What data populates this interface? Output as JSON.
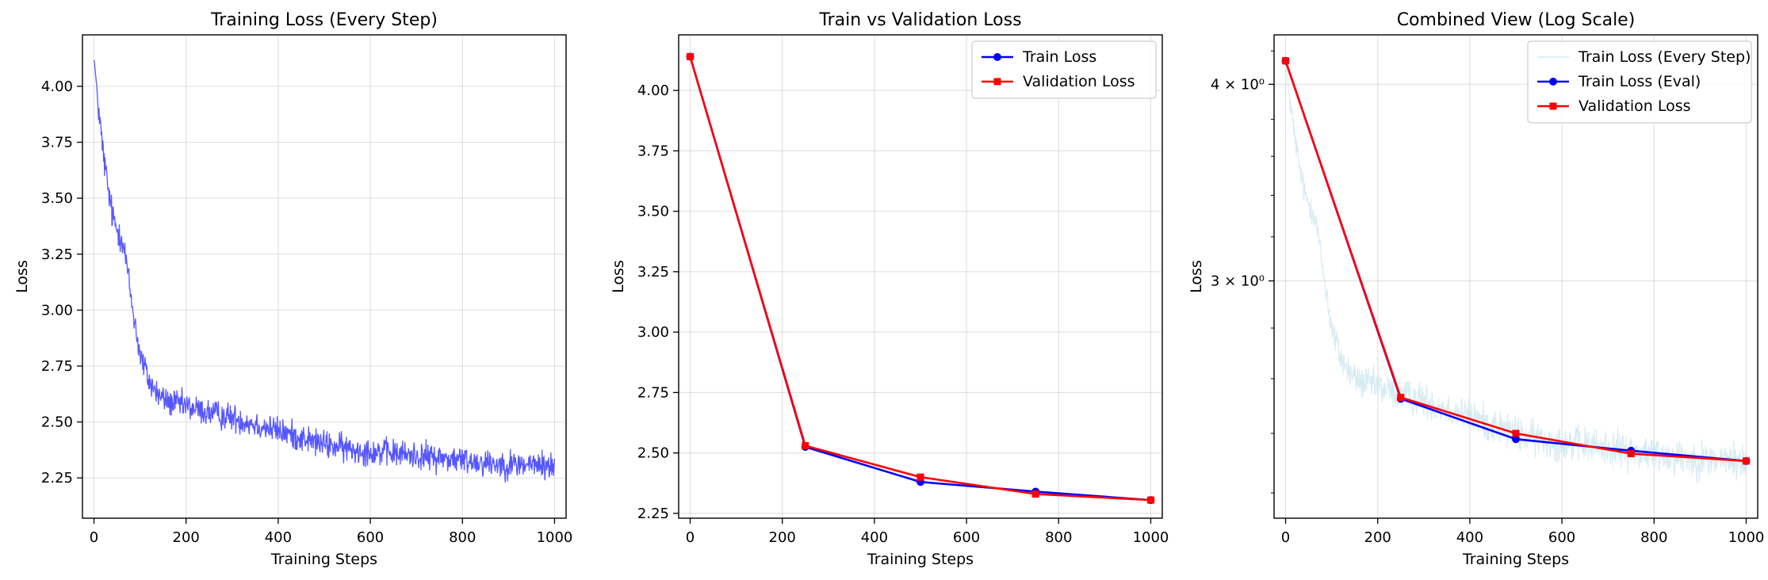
{
  "chart_data": [
    {
      "type": "line",
      "title": "Training Loss (Every Step)",
      "xlabel": "Training Steps",
      "ylabel": "Loss",
      "xlim": [
        -25,
        1025
      ],
      "ylim": [
        2.07,
        4.23
      ],
      "xticks": [
        0,
        200,
        400,
        600,
        800,
        1000
      ],
      "xtick_labels": [
        "0",
        "200",
        "400",
        "600",
        "800",
        "1000"
      ],
      "yticks": [
        2.25,
        2.5,
        2.75,
        3.0,
        3.25,
        3.5,
        3.75,
        4.0
      ],
      "ytick_labels": [
        "2.25",
        "2.50",
        "2.75",
        "3.00",
        "3.25",
        "3.50",
        "3.75",
        "4.00"
      ],
      "grid": true,
      "series": [
        {
          "color": "#4444ff",
          "per_step": true,
          "x": [
            0,
            10,
            20,
            30,
            40,
            50,
            60,
            70,
            80,
            90,
            100,
            120,
            140,
            160,
            180,
            200,
            250,
            300,
            350,
            400,
            450,
            500,
            550,
            600,
            650,
            700,
            750,
            800,
            850,
            900,
            950,
            1000
          ],
          "values": [
            4.13,
            3.9,
            3.7,
            3.55,
            3.42,
            3.36,
            3.33,
            3.22,
            3.06,
            2.93,
            2.8,
            2.68,
            2.62,
            2.59,
            2.58,
            2.57,
            2.54,
            2.52,
            2.49,
            2.46,
            2.43,
            2.4,
            2.38,
            2.37,
            2.36,
            2.35,
            2.34,
            2.33,
            2.32,
            2.31,
            2.31,
            2.3
          ]
        }
      ]
    },
    {
      "type": "line",
      "title": "Train vs Validation Loss",
      "xlabel": "Training Steps",
      "ylabel": "Loss",
      "xlim": [
        -25,
        1025
      ],
      "ylim": [
        2.23,
        4.23
      ],
      "xticks": [
        0,
        200,
        400,
        600,
        800,
        1000
      ],
      "xtick_labels": [
        "0",
        "200",
        "400",
        "600",
        "800",
        "1000"
      ],
      "yticks": [
        2.25,
        2.5,
        2.75,
        3.0,
        3.25,
        3.5,
        3.75,
        4.0
      ],
      "ytick_labels": [
        "2.25",
        "2.50",
        "2.75",
        "3.00",
        "3.25",
        "3.50",
        "3.75",
        "4.00"
      ],
      "grid": true,
      "legend": "top-right",
      "series": [
        {
          "name": "Train Loss",
          "color": "#0000ff",
          "marker": "circle",
          "x": [
            0,
            250,
            500,
            750,
            1000
          ],
          "values": [
            4.14,
            2.525,
            2.38,
            2.34,
            2.305
          ]
        },
        {
          "name": "Validation Loss",
          "color": "#ff0000",
          "marker": "square",
          "x": [
            0,
            250,
            500,
            750,
            1000
          ],
          "values": [
            4.14,
            2.53,
            2.4,
            2.33,
            2.305
          ]
        }
      ]
    },
    {
      "type": "line",
      "title": "Combined View (Log Scale)",
      "xlabel": "Training Steps",
      "ylabel": "Loss",
      "yscale": "log",
      "xlim": [
        -25,
        1025
      ],
      "ylim": [
        2.12,
        4.3
      ],
      "xticks": [
        0,
        200,
        400,
        600,
        800,
        1000
      ],
      "xtick_labels": [
        "0",
        "200",
        "400",
        "600",
        "800",
        "1000"
      ],
      "yticks": [
        3.0,
        4.0
      ],
      "ytick_labels": [
        "3 × 10⁰",
        "4 × 10⁰"
      ],
      "grid": true,
      "legend": "top-right",
      "series": [
        {
          "name": "Train Loss (Every Step)",
          "color": "#add8e6",
          "per_step": true,
          "x": [
            0,
            10,
            20,
            30,
            40,
            50,
            60,
            70,
            80,
            90,
            100,
            120,
            140,
            160,
            180,
            200,
            250,
            300,
            350,
            400,
            450,
            500,
            550,
            600,
            650,
            700,
            750,
            800,
            850,
            900,
            950,
            1000
          ],
          "values": [
            4.13,
            3.9,
            3.7,
            3.55,
            3.42,
            3.36,
            3.33,
            3.22,
            3.06,
            2.93,
            2.8,
            2.68,
            2.62,
            2.59,
            2.58,
            2.57,
            2.54,
            2.52,
            2.49,
            2.46,
            2.43,
            2.4,
            2.38,
            2.37,
            2.36,
            2.35,
            2.34,
            2.33,
            2.32,
            2.31,
            2.31,
            2.3
          ]
        },
        {
          "name": "Train Loss (Eval)",
          "color": "#0000ff",
          "marker": "circle",
          "x": [
            0,
            250,
            500,
            750,
            1000
          ],
          "values": [
            4.14,
            2.525,
            2.38,
            2.34,
            2.305
          ]
        },
        {
          "name": "Validation Loss",
          "color": "#ff0000",
          "marker": "square",
          "x": [
            0,
            250,
            500,
            750,
            1000
          ],
          "values": [
            4.14,
            2.53,
            2.4,
            2.33,
            2.305
          ]
        }
      ]
    }
  ]
}
